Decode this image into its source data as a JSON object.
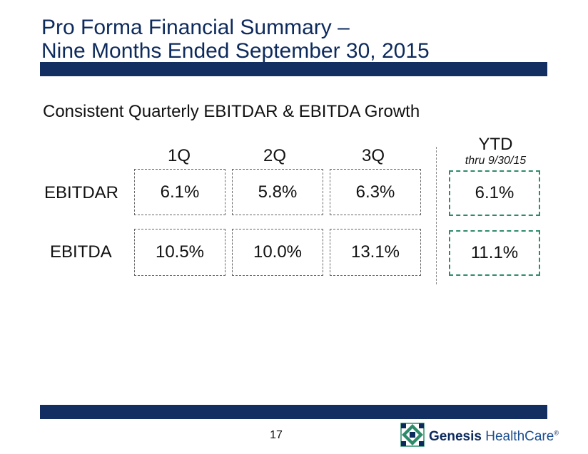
{
  "title": {
    "line1": "Pro Forma Financial Summary –",
    "line2": "Nine Months Ended September 30, 2015"
  },
  "subtitle": "Consistent Quarterly EBITDAR & EBITDA Growth",
  "columns": {
    "q1": "1Q",
    "q2": "2Q",
    "q3": "3Q",
    "ytd": "YTD",
    "ytd_note": "thru 9/30/15"
  },
  "rows": {
    "ebitdar": {
      "label": "EBITDAR",
      "q1": "6.1%",
      "q2": "5.8%",
      "q3": "6.3%",
      "ytd": "6.1%"
    },
    "ebitda": {
      "label": "EBITDA",
      "q1": "10.5%",
      "q2": "10.0%",
      "q3": "13.1%",
      "ytd": "11.1%"
    }
  },
  "page_number": "17",
  "logo": {
    "word1": "Genesis",
    "word2": "HealthCare",
    "mark": "®",
    "icon": "quilt-star-logo-icon"
  },
  "colors": {
    "navy_band": "#132f61",
    "ytd_border": "#2e8b6a",
    "title_text": "#0d2a5c"
  }
}
